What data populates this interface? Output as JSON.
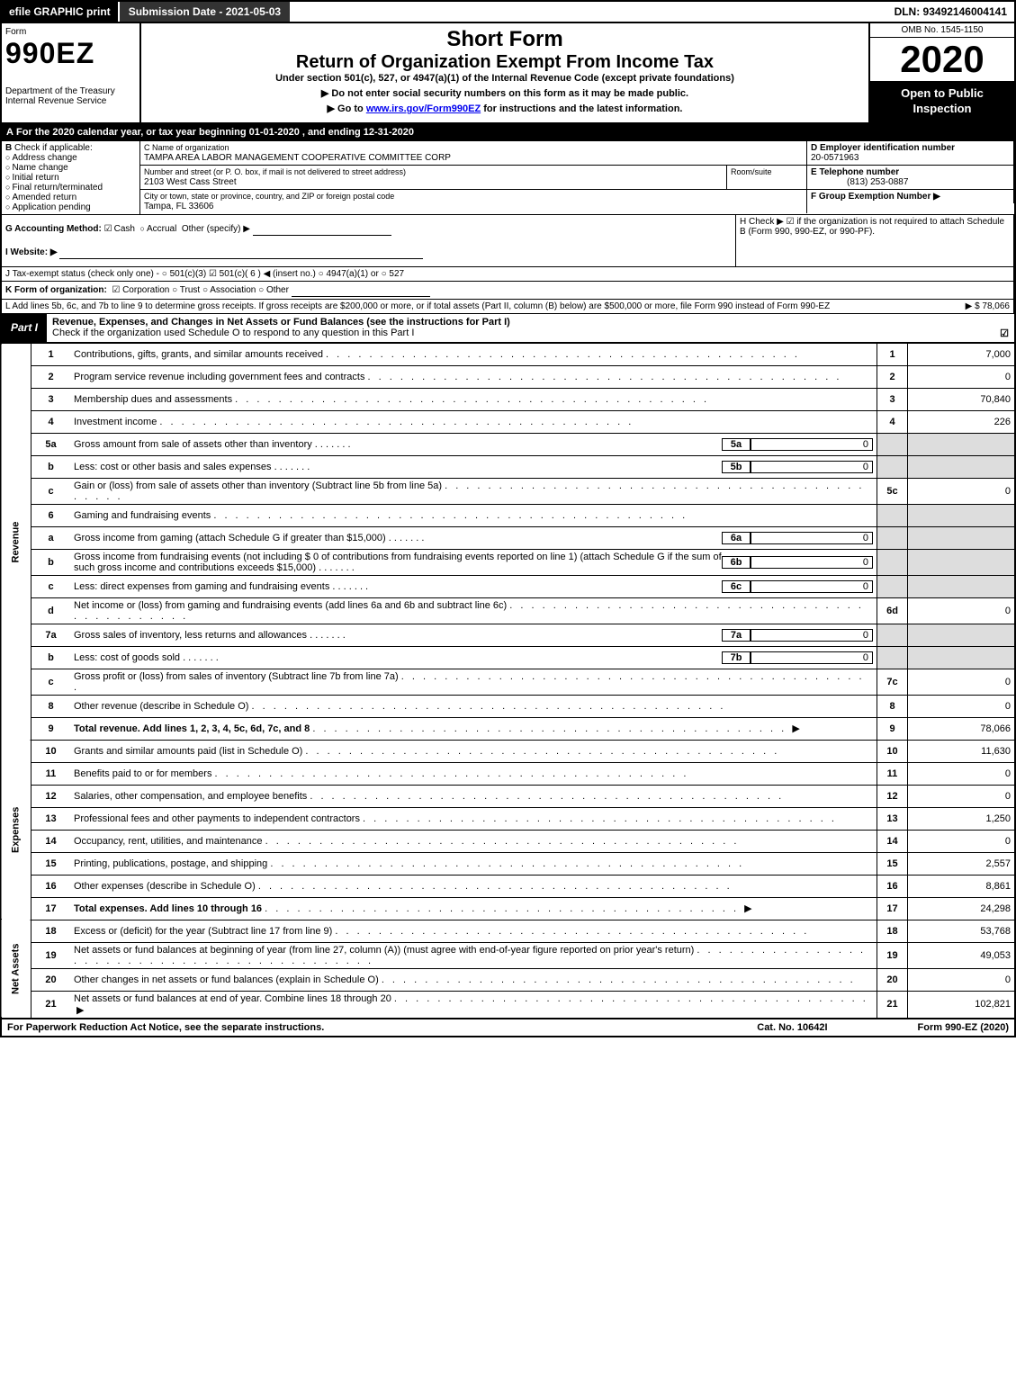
{
  "topbar": {
    "efile": "efile GRAPHIC print",
    "submission": "Submission Date - 2021-05-03",
    "dln": "DLN: 93492146004141"
  },
  "header": {
    "form_word": "Form",
    "form_990ez": "990EZ",
    "short_form": "Short Form",
    "return_title": "Return of Organization Exempt From Income Tax",
    "subtitle": "Under section 501(c), 527, or 4947(a)(1) of the Internal Revenue Code (except private foundations)",
    "notice1": "▶ Do not enter social security numbers on this form as it may be made public.",
    "notice2_pre": "▶ Go to ",
    "notice2_link": "www.irs.gov/Form990EZ",
    "notice2_post": " for instructions and the latest information.",
    "dept": "Department of the Treasury",
    "irs": "Internal Revenue Service",
    "omb": "OMB No. 1545-1150",
    "year": "2020",
    "open": "Open to Public Inspection"
  },
  "A": {
    "text": "For the 2020 calendar year, or tax year beginning 01-01-2020 , and ending 12-31-2020"
  },
  "B": {
    "label": "Check if applicable:",
    "opts": [
      "Address change",
      "Name change",
      "Initial return",
      "Final return/terminated",
      "Amended return",
      "Application pending"
    ]
  },
  "C": {
    "name_lbl": "C Name of organization",
    "name": "TAMPA AREA LABOR MANAGEMENT COOPERATIVE COMMITTEE CORP",
    "addr_lbl": "Number and street (or P. O. box, if mail is not delivered to street address)",
    "addr": "2103 West Cass Street",
    "room_lbl": "Room/suite",
    "city_lbl": "City or town, state or province, country, and ZIP or foreign postal code",
    "city": "Tampa, FL  33606"
  },
  "D": {
    "lbl": "D Employer identification number",
    "val": "20-0571963"
  },
  "E": {
    "lbl": "E Telephone number",
    "val": "(813) 253-0887"
  },
  "F": {
    "lbl": "F Group Exemption Number  ▶"
  },
  "G": {
    "lbl": "G Accounting Method:",
    "cash": "Cash",
    "accrual": "Accrual",
    "other": "Other (specify) ▶"
  },
  "H": {
    "text": "H  Check ▶ ☑ if the organization is not required to attach Schedule B (Form 990, 990-EZ, or 990-PF)."
  },
  "I": {
    "lbl": "I Website: ▶"
  },
  "J": {
    "text": "J Tax-exempt status (check only one) - ○ 501(c)(3) ☑ 501(c)( 6 ) ◀ (insert no.) ○ 4947(a)(1) or ○ 527"
  },
  "K": {
    "lbl": "K Form of organization:",
    "opts": "☑ Corporation  ○ Trust  ○ Association  ○ Other"
  },
  "L": {
    "text": "L Add lines 5b, 6c, and 7b to line 9 to determine gross receipts. If gross receipts are $200,000 or more, or if total assets (Part II, column (B) below) are $500,000 or more, file Form 990 instead of Form 990-EZ",
    "amt": "▶ $ 78,066"
  },
  "part1": {
    "label": "Part I",
    "title": "Revenue, Expenses, and Changes in Net Assets or Fund Balances (see the instructions for Part I)",
    "check": "Check if the organization used Schedule O to respond to any question in this Part I",
    "sections": {
      "rev": "Revenue",
      "exp": "Expenses",
      "net": "Net Assets"
    }
  },
  "lines": [
    {
      "n": "1",
      "d": "Contributions, gifts, grants, and similar amounts received",
      "c": "1",
      "a": "7,000"
    },
    {
      "n": "2",
      "d": "Program service revenue including government fees and contracts",
      "c": "2",
      "a": "0"
    },
    {
      "n": "3",
      "d": "Membership dues and assessments",
      "c": "3",
      "a": "70,840"
    },
    {
      "n": "4",
      "d": "Investment income",
      "c": "4",
      "a": "226"
    },
    {
      "n": "5a",
      "d": "Gross amount from sale of assets other than inventory",
      "sn": "5a",
      "sa": "0",
      "shade": true
    },
    {
      "n": "b",
      "d": "Less: cost or other basis and sales expenses",
      "sn": "5b",
      "sa": "0",
      "shade": true
    },
    {
      "n": "c",
      "d": "Gain or (loss) from sale of assets other than inventory (Subtract line 5b from line 5a)",
      "c": "5c",
      "a": "0"
    },
    {
      "n": "6",
      "d": "Gaming and fundraising events",
      "shade": true
    },
    {
      "n": "a",
      "d": "Gross income from gaming (attach Schedule G if greater than $15,000)",
      "sn": "6a",
      "sa": "0",
      "shade": true
    },
    {
      "n": "b",
      "d": "Gross income from fundraising events (not including $  0           of contributions from fundraising events reported on line 1) (attach Schedule G if the sum of such gross income and contributions exceeds $15,000)",
      "sn": "6b",
      "sa": "0",
      "shade": true
    },
    {
      "n": "c",
      "d": "Less: direct expenses from gaming and fundraising events",
      "sn": "6c",
      "sa": "0",
      "shade": true
    },
    {
      "n": "d",
      "d": "Net income or (loss) from gaming and fundraising events (add lines 6a and 6b and subtract line 6c)",
      "c": "6d",
      "a": "0"
    },
    {
      "n": "7a",
      "d": "Gross sales of inventory, less returns and allowances",
      "sn": "7a",
      "sa": "0",
      "shade": true
    },
    {
      "n": "b",
      "d": "Less: cost of goods sold",
      "sn": "7b",
      "sa": "0",
      "shade": true
    },
    {
      "n": "c",
      "d": "Gross profit or (loss) from sales of inventory (Subtract line 7b from line 7a)",
      "c": "7c",
      "a": "0"
    },
    {
      "n": "8",
      "d": "Other revenue (describe in Schedule O)",
      "c": "8",
      "a": "0"
    },
    {
      "n": "9",
      "d": "Total revenue. Add lines 1, 2, 3, 4, 5c, 6d, 7c, and 8",
      "c": "9",
      "a": "78,066",
      "bold": true,
      "arrow": true
    },
    {
      "n": "10",
      "d": "Grants and similar amounts paid (list in Schedule O)",
      "c": "10",
      "a": "11,630"
    },
    {
      "n": "11",
      "d": "Benefits paid to or for members",
      "c": "11",
      "a": "0"
    },
    {
      "n": "12",
      "d": "Salaries, other compensation, and employee benefits",
      "c": "12",
      "a": "0"
    },
    {
      "n": "13",
      "d": "Professional fees and other payments to independent contractors",
      "c": "13",
      "a": "1,250"
    },
    {
      "n": "14",
      "d": "Occupancy, rent, utilities, and maintenance",
      "c": "14",
      "a": "0"
    },
    {
      "n": "15",
      "d": "Printing, publications, postage, and shipping",
      "c": "15",
      "a": "2,557"
    },
    {
      "n": "16",
      "d": "Other expenses (describe in Schedule O)",
      "c": "16",
      "a": "8,861"
    },
    {
      "n": "17",
      "d": "Total expenses. Add lines 10 through 16",
      "c": "17",
      "a": "24,298",
      "bold": true,
      "arrow": true
    },
    {
      "n": "18",
      "d": "Excess or (deficit) for the year (Subtract line 17 from line 9)",
      "c": "18",
      "a": "53,768"
    },
    {
      "n": "19",
      "d": "Net assets or fund balances at beginning of year (from line 27, column (A)) (must agree with end-of-year figure reported on prior year's return)",
      "c": "19",
      "a": "49,053"
    },
    {
      "n": "20",
      "d": "Other changes in net assets or fund balances (explain in Schedule O)",
      "c": "20",
      "a": "0"
    },
    {
      "n": "21",
      "d": "Net assets or fund balances at end of year. Combine lines 18 through 20",
      "c": "21",
      "a": "102,821",
      "arrow": true
    }
  ],
  "footer": {
    "left": "For Paperwork Reduction Act Notice, see the separate instructions.",
    "mid": "Cat. No. 10642I",
    "right": "Form 990-EZ (2020)"
  }
}
